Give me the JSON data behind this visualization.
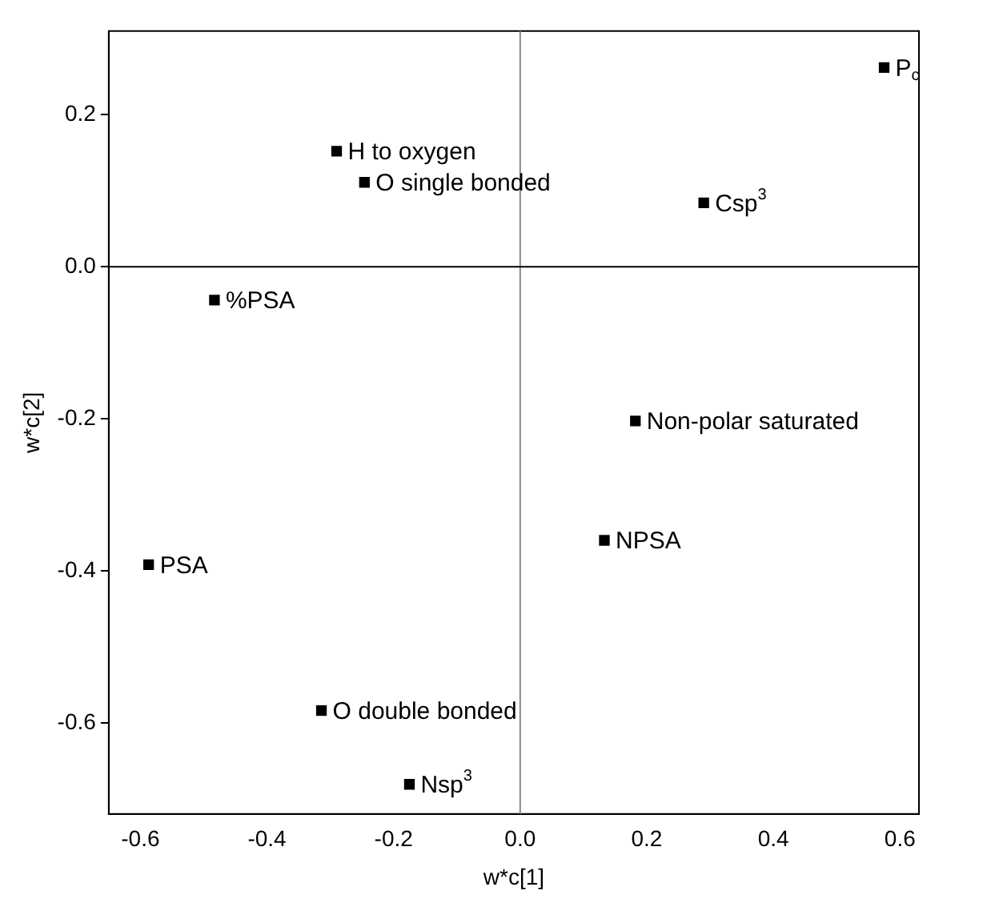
{
  "chart_data": {
    "type": "scatter",
    "xlabel": "w*c[1]",
    "ylabel": "w*c[2]",
    "x": [
      0.575,
      -0.29,
      -0.246,
      0.29,
      -0.483,
      0.182,
      0.133,
      -0.587,
      -0.314,
      -0.175
    ],
    "series": [
      {
        "color": "#000000",
        "values": [
          0.262,
          0.152,
          0.111,
          0.084,
          -0.044,
          -0.203,
          -0.36,
          -0.392,
          -0.584,
          -0.681
        ]
      }
    ],
    "marker": "square",
    "xlim": [
      -0.65,
      0.63
    ],
    "xticks": [
      {
        "value": -0.6,
        "label": "-0.6"
      },
      {
        "value": -0.4,
        "label": "-0.4"
      },
      {
        "value": -0.2,
        "label": "-0.2"
      },
      {
        "value": 0,
        "label": "0.0"
      },
      {
        "value": 0.2,
        "label": "0.2"
      },
      {
        "value": 0.4,
        "label": "0.4"
      },
      {
        "value": 0.6,
        "label": "0.6"
      }
    ],
    "ylim": [
      -0.72,
      0.31
    ],
    "yticks": [
      {
        "value": -0.6,
        "label": "-0.6"
      },
      {
        "value": -0.4,
        "label": "-0.4"
      },
      {
        "value": -0.2,
        "label": "-0.2"
      },
      {
        "value": 0,
        "label": "0.0"
      },
      {
        "value": 0.2,
        "label": "0.2"
      }
    ],
    "grid": false,
    "legend": false,
    "ref_lines": [
      {
        "axis": "x",
        "value": 0,
        "color": "#888888"
      },
      {
        "axis": "y",
        "value": 0,
        "color": "#000000"
      }
    ],
    "annotations": [
      {
        "text": "P$_{c}$",
        "x": 0.575,
        "y": 0.262
      },
      {
        "text": "H to oxygen",
        "x": -0.29,
        "y": 0.152
      },
      {
        "text": "O single bonded",
        "x": -0.246,
        "y": 0.111
      },
      {
        "text": "Csp$^{3}$",
        "x": 0.29,
        "y": 0.084
      },
      {
        "text": "%PSA",
        "x": -0.483,
        "y": -0.044
      },
      {
        "text": "Non-polar saturated",
        "x": 0.182,
        "y": -0.203
      },
      {
        "text": "NPSA",
        "x": 0.133,
        "y": -0.36
      },
      {
        "text": "PSA",
        "x": -0.587,
        "y": -0.392
      },
      {
        "text": "O double bonded",
        "x": -0.314,
        "y": -0.584
      },
      {
        "text": "Nsp$^{3}$",
        "x": -0.175,
        "y": -0.681
      }
    ]
  }
}
